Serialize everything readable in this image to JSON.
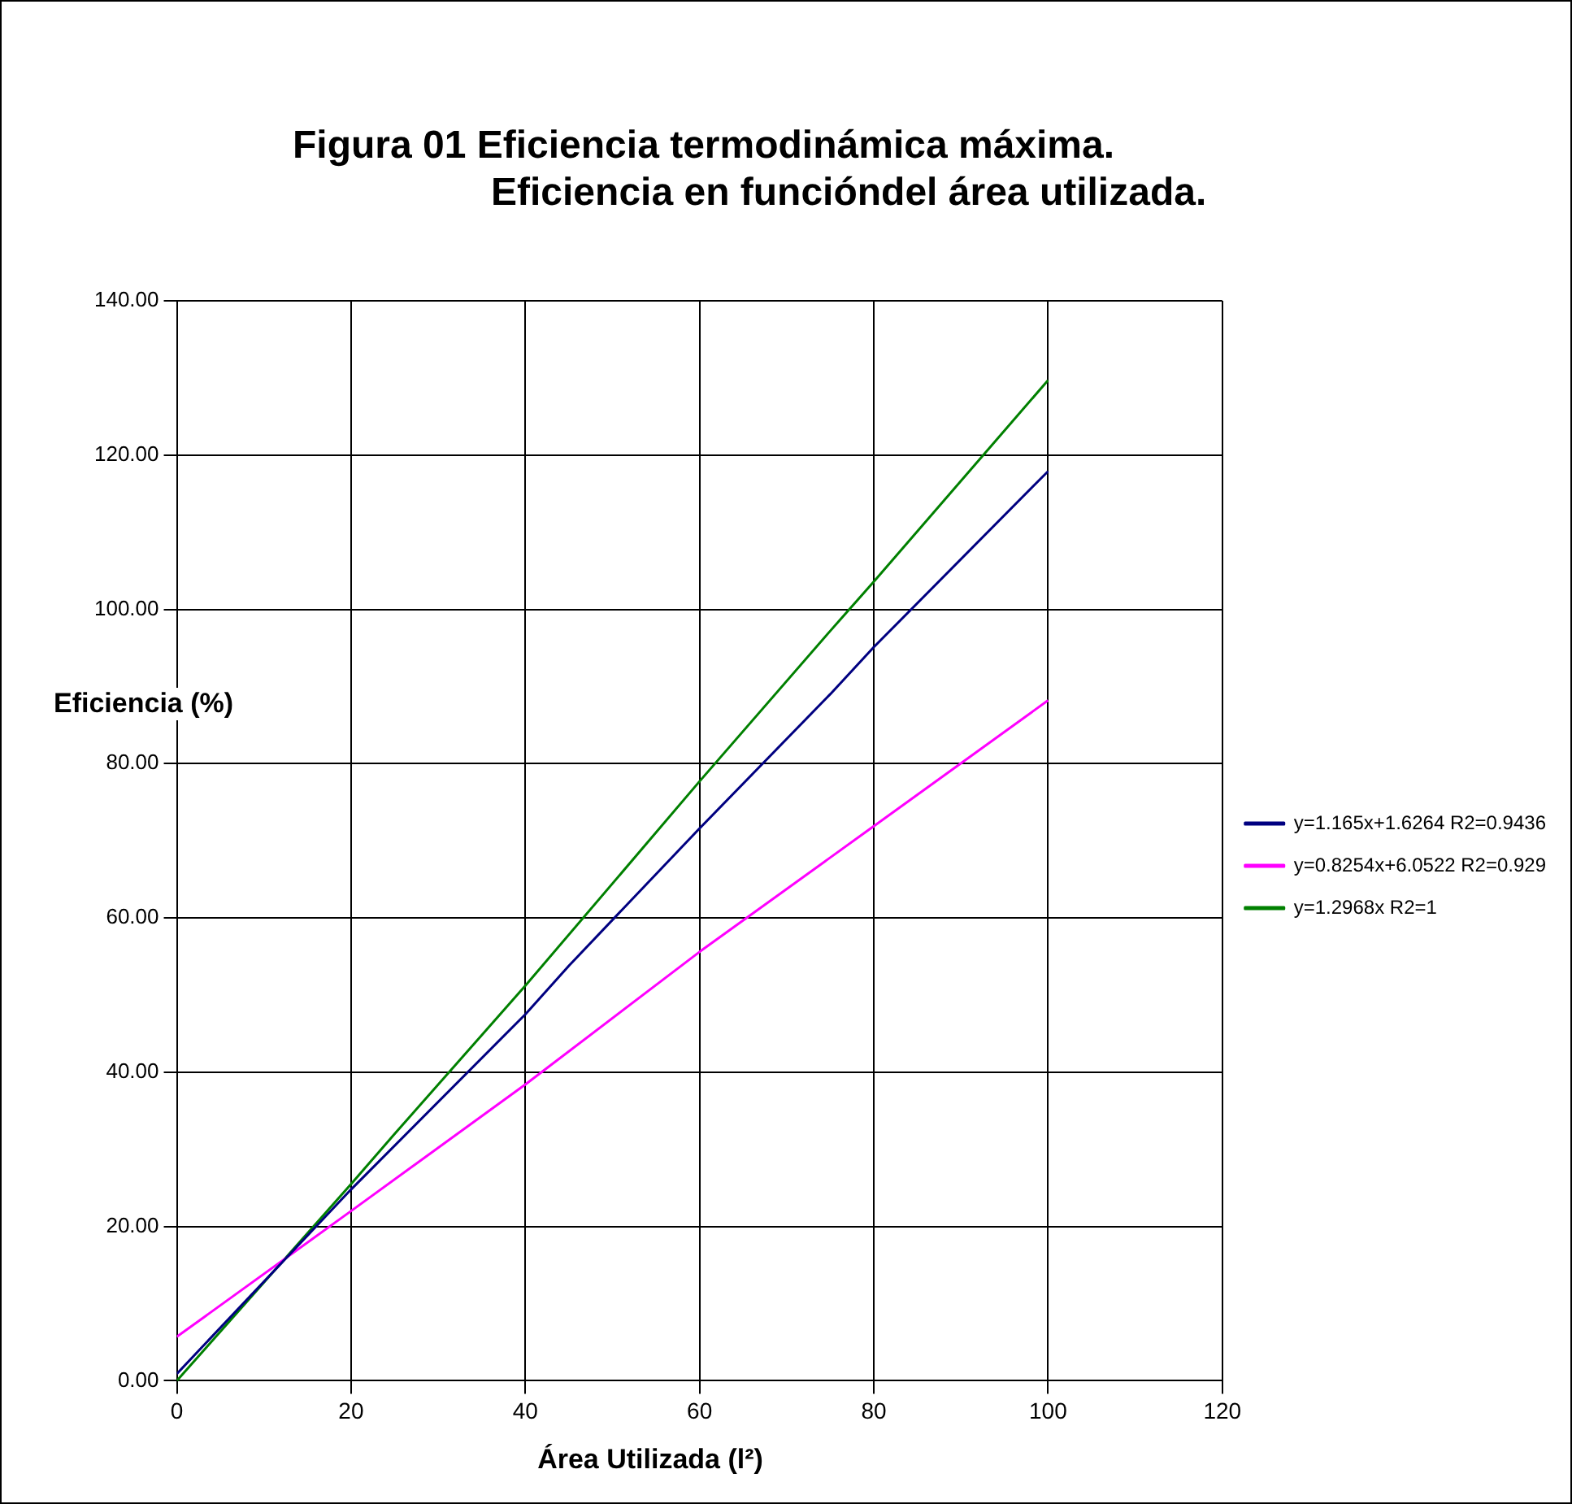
{
  "chart_data": {
    "type": "line",
    "title": "Figura 01 Eficiencia termodinámica máxima.",
    "subtitle": "Eficiencia en funcióndel área utilizada.",
    "xlabel": "Área Utilizada (l²)",
    "ylabel": "Eficiencia (%)",
    "series": [
      {
        "name": "y=1.165x+1.6264 R2=0.9436",
        "color": "#000080",
        "x": [
          0,
          20,
          40,
          45,
          60,
          75,
          80,
          100
        ],
        "values": [
          0.9,
          24.8,
          47.5,
          53.8,
          71.6,
          89.0,
          95.1,
          117.9
        ]
      },
      {
        "name": "y=0.8254x+6.0522 R2=0.929",
        "color": "#ff00ff",
        "x": [
          0,
          20,
          40,
          60,
          80,
          100
        ],
        "values": [
          5.7,
          22.0,
          38.4,
          55.6,
          71.9,
          88.2
        ]
      },
      {
        "name": "y=1.2968x R2=1",
        "color": "#008000",
        "x": [
          0,
          20,
          25,
          40,
          60,
          75,
          80,
          100
        ],
        "values": [
          0,
          25.5,
          32,
          51.2,
          77.7,
          97.2,
          103.6,
          129.7
        ]
      }
    ],
    "xlim": [
      0,
      120
    ],
    "xticks": [
      0,
      20,
      40,
      60,
      80,
      100,
      120
    ],
    "ylim": [
      0,
      140
    ],
    "yticks": [
      {
        "value": 0,
        "label": "0.00"
      },
      {
        "value": 20,
        "label": "20.00"
      },
      {
        "value": 40,
        "label": "40.00"
      },
      {
        "value": 60,
        "label": "60.00"
      },
      {
        "value": 80,
        "label": "80.00"
      },
      {
        "value": 100,
        "label": "100.00"
      },
      {
        "value": 120,
        "label": "120.00"
      },
      {
        "value": 140,
        "label": "140.00"
      }
    ],
    "grid": true,
    "legend": "right",
    "marker": "none",
    "line_style": "solid"
  }
}
